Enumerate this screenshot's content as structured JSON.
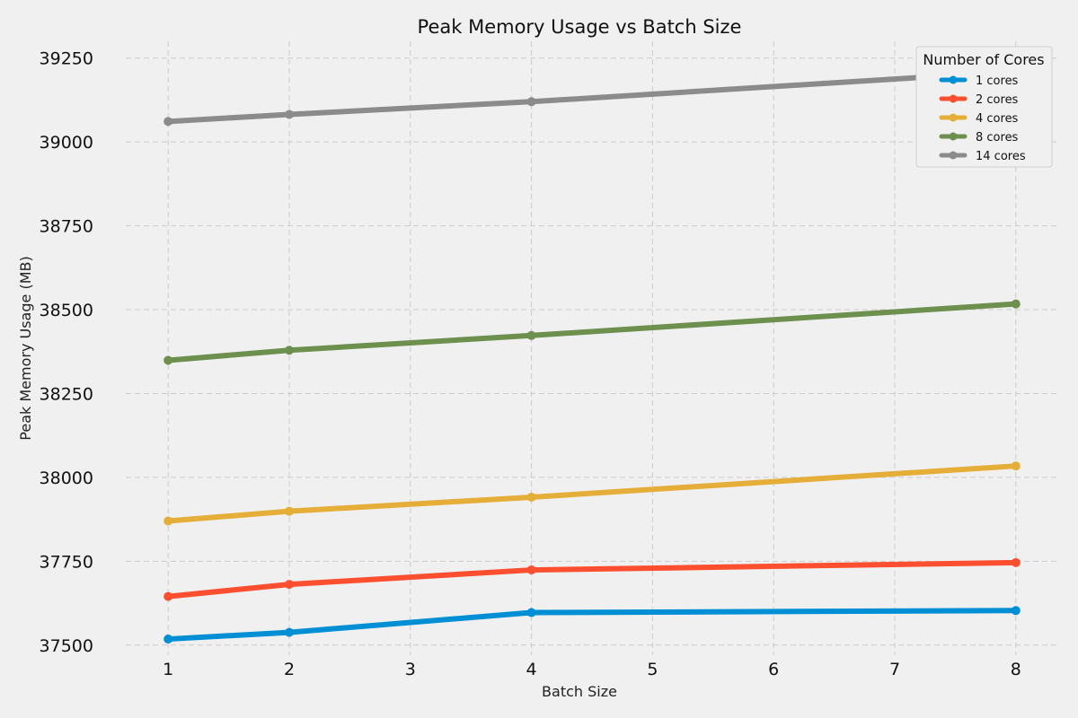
{
  "chart_data": {
    "type": "line",
    "title": "Peak Memory Usage vs Batch Size",
    "xlabel": "Batch Size",
    "ylabel": "Peak Memory Usage (MB)",
    "xlim": [
      0.65,
      8.35
    ],
    "ylim": [
      37470,
      39300
    ],
    "xticks": [
      1,
      2,
      3,
      4,
      5,
      6,
      7,
      8
    ],
    "yticks": [
      37500,
      37750,
      38000,
      38250,
      38500,
      38750,
      39000,
      39250
    ],
    "grid": true,
    "legend": {
      "title": "Number of Cores",
      "placement": "top-right"
    },
    "x": [
      1,
      2,
      4,
      8
    ],
    "series": [
      {
        "name": "1 cores",
        "color": "#008fd5",
        "values": [
          37518,
          37538,
          37597,
          37603
        ]
      },
      {
        "name": "2 cores",
        "color": "#fc4f30",
        "values": [
          37645,
          37681,
          37724,
          37746
        ]
      },
      {
        "name": "4 cores",
        "color": "#e5ae38",
        "values": [
          37870,
          37899,
          37941,
          38034
        ]
      },
      {
        "name": "8 cores",
        "color": "#6d904f",
        "values": [
          38349,
          38379,
          38423,
          38517
        ]
      },
      {
        "name": "14 cores",
        "color": "#8b8b8b",
        "values": [
          39061,
          39082,
          39120,
          39210
        ]
      }
    ]
  }
}
